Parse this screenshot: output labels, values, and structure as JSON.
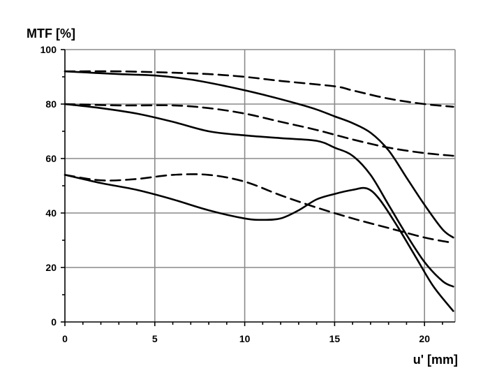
{
  "chart_data": {
    "type": "line",
    "title": "",
    "ylabel": "MTF [%]",
    "xlabel": "u' [mm]",
    "xlim": [
      0,
      21.7
    ],
    "ylim": [
      0,
      100
    ],
    "x_ticks": [
      0,
      5,
      10,
      15,
      20
    ],
    "y_ticks": [
      0,
      20,
      40,
      60,
      80,
      100
    ],
    "grid": true,
    "legend": "none",
    "colors": {
      "line": "#000000",
      "grid": "#8a8a8a"
    },
    "series": [
      {
        "style": "solid",
        "points": [
          [
            0,
            92
          ],
          [
            3,
            91
          ],
          [
            5,
            90.5
          ],
          [
            7,
            89
          ],
          [
            9,
            86.5
          ],
          [
            11,
            83.5
          ],
          [
            13,
            80
          ],
          [
            14,
            78
          ],
          [
            15,
            75.5
          ],
          [
            16,
            73
          ],
          [
            17,
            69.5
          ],
          [
            18,
            63
          ],
          [
            19,
            53
          ],
          [
            20,
            43
          ],
          [
            21,
            34
          ],
          [
            21.6,
            31
          ]
        ]
      },
      {
        "style": "solid",
        "points": [
          [
            0,
            80
          ],
          [
            2,
            78.5
          ],
          [
            4,
            76.5
          ],
          [
            6,
            73.5
          ],
          [
            8,
            70
          ],
          [
            10,
            68.5
          ],
          [
            12,
            67.5
          ],
          [
            14,
            66.5
          ],
          [
            15,
            64
          ],
          [
            16,
            61
          ],
          [
            17,
            54
          ],
          [
            18,
            43
          ],
          [
            19,
            32
          ],
          [
            20,
            22
          ],
          [
            21,
            15
          ],
          [
            21.6,
            13
          ]
        ]
      },
      {
        "style": "solid",
        "points": [
          [
            0,
            54
          ],
          [
            2,
            51
          ],
          [
            4,
            48.5
          ],
          [
            6,
            45
          ],
          [
            8,
            41
          ],
          [
            10,
            38
          ],
          [
            11,
            37.5
          ],
          [
            12,
            38
          ],
          [
            13,
            41
          ],
          [
            14,
            45
          ],
          [
            15,
            47
          ],
          [
            16,
            48.5
          ],
          [
            16.8,
            49
          ],
          [
            17.5,
            45
          ],
          [
            18.5,
            35
          ],
          [
            19.5,
            24
          ],
          [
            20.5,
            13
          ],
          [
            21.6,
            4
          ]
        ]
      },
      {
        "style": "dashed",
        "points": [
          [
            0,
            92
          ],
          [
            3,
            92
          ],
          [
            6,
            91.5
          ],
          [
            8,
            91
          ],
          [
            10,
            90
          ],
          [
            12,
            88.5
          ],
          [
            15,
            86.5
          ],
          [
            16,
            85
          ],
          [
            18,
            82
          ],
          [
            20,
            80
          ],
          [
            21.6,
            79
          ]
        ]
      },
      {
        "style": "dashed",
        "points": [
          [
            0,
            80
          ],
          [
            3,
            79.5
          ],
          [
            6,
            79.5
          ],
          [
            8,
            78.5
          ],
          [
            10,
            76.5
          ],
          [
            12,
            73.5
          ],
          [
            14,
            70.5
          ],
          [
            16,
            67
          ],
          [
            18,
            64
          ],
          [
            20,
            62
          ],
          [
            21.6,
            61
          ]
        ]
      },
      {
        "style": "dashed",
        "points": [
          [
            0,
            54
          ],
          [
            2,
            52
          ],
          [
            4,
            52.5
          ],
          [
            6,
            54
          ],
          [
            8,
            54
          ],
          [
            10,
            51.5
          ],
          [
            12,
            46.5
          ],
          [
            14,
            42
          ],
          [
            16,
            38
          ],
          [
            18,
            34.5
          ],
          [
            20,
            31
          ],
          [
            21.6,
            29
          ]
        ]
      }
    ]
  }
}
